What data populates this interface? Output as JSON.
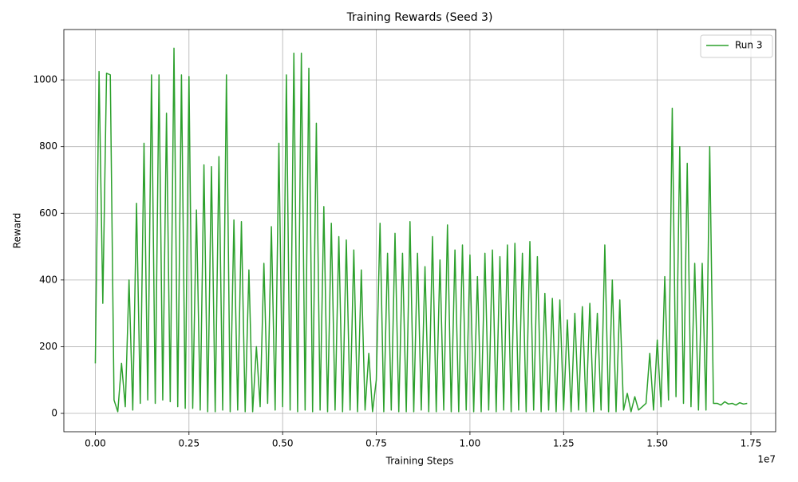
{
  "chart_data": {
    "type": "line",
    "title": "Training Rewards (Seed 3)",
    "x_label": "Training Steps",
    "y_label": "Reward",
    "x_offset_label": "1e7",
    "x": [
      0,
      0.01,
      0.02,
      0.03,
      0.04,
      0.05,
      0.06,
      0.07,
      0.08,
      0.09,
      0.1,
      0.11,
      0.12,
      0.13,
      0.14,
      0.15,
      0.16,
      0.17,
      0.18,
      0.19,
      0.2,
      0.21,
      0.22,
      0.23,
      0.24,
      0.25,
      0.26,
      0.27,
      0.28,
      0.29,
      0.3,
      0.31,
      0.32,
      0.33,
      0.34,
      0.35,
      0.36,
      0.37,
      0.38,
      0.39,
      0.4,
      0.41,
      0.42,
      0.43,
      0.44,
      0.45,
      0.46,
      0.47,
      0.48,
      0.49,
      0.5,
      0.51,
      0.52,
      0.53,
      0.54,
      0.55,
      0.56,
      0.57,
      0.58,
      0.59,
      0.6,
      0.61,
      0.62,
      0.63,
      0.64,
      0.65,
      0.66,
      0.67,
      0.68,
      0.69,
      0.7,
      0.71,
      0.72,
      0.73,
      0.74,
      0.75,
      0.76,
      0.77,
      0.78,
      0.79,
      0.8,
      0.81,
      0.82,
      0.83,
      0.84,
      0.85,
      0.86,
      0.87,
      0.88,
      0.89,
      0.9,
      0.91,
      0.92,
      0.93,
      0.94,
      0.95,
      0.96,
      0.97,
      0.98,
      0.99,
      1,
      1.01,
      1.02,
      1.03,
      1.04,
      1.05,
      1.06,
      1.07,
      1.08,
      1.09,
      1.1,
      1.11,
      1.12,
      1.13,
      1.14,
      1.15,
      1.16,
      1.17,
      1.18,
      1.19,
      1.2,
      1.21,
      1.22,
      1.23,
      1.24,
      1.25,
      1.26,
      1.27,
      1.28,
      1.29,
      1.3,
      1.31,
      1.32,
      1.33,
      1.34,
      1.35,
      1.36,
      1.37,
      1.38,
      1.39,
      1.4,
      1.41,
      1.42,
      1.43,
      1.44,
      1.45,
      1.46,
      1.47,
      1.48,
      1.49,
      1.5,
      1.51,
      1.52,
      1.53,
      1.54,
      1.55,
      1.56,
      1.57,
      1.58,
      1.59,
      1.6,
      1.61,
      1.62,
      1.63,
      1.64,
      1.65,
      1.66,
      1.67,
      1.68,
      1.69,
      1.7,
      1.71,
      1.72,
      1.73,
      1.74
    ],
    "series": [
      {
        "name": "Run 3",
        "color": "#2ca02c",
        "values": [
          150,
          1025,
          330,
          1020,
          1015,
          40,
          5,
          150,
          20,
          400,
          10,
          630,
          30,
          810,
          40,
          1015,
          30,
          1015,
          40,
          900,
          35,
          1095,
          20,
          1015,
          15,
          1010,
          15,
          610,
          10,
          745,
          5,
          740,
          5,
          770,
          10,
          1015,
          5,
          580,
          10,
          575,
          5,
          430,
          5,
          200,
          20,
          450,
          30,
          560,
          10,
          810,
          20,
          1015,
          10,
          1080,
          5,
          1080,
          10,
          1035,
          5,
          870,
          10,
          620,
          5,
          570,
          10,
          530,
          5,
          520,
          10,
          490,
          5,
          430,
          10,
          180,
          5,
          100,
          570,
          5,
          480,
          10,
          540,
          5,
          480,
          5,
          575,
          5,
          480,
          10,
          440,
          5,
          530,
          5,
          460,
          10,
          565,
          5,
          490,
          5,
          505,
          10,
          475,
          5,
          410,
          5,
          480,
          10,
          490,
          5,
          470,
          10,
          505,
          5,
          510,
          10,
          480,
          5,
          515,
          10,
          470,
          5,
          360,
          10,
          345,
          5,
          340,
          10,
          280,
          5,
          300,
          10,
          320,
          5,
          330,
          5,
          300,
          10,
          505,
          5,
          400,
          5,
          340,
          10,
          60,
          5,
          50,
          10,
          20,
          30,
          180,
          10,
          220,
          20,
          410,
          40,
          915,
          50,
          800,
          30,
          750,
          20,
          450,
          10,
          450,
          10,
          800,
          30,
          30,
          25,
          35,
          28,
          30,
          25,
          32,
          28,
          30
        ]
      }
    ],
    "xlim": [
      -0.084,
      1.816
    ],
    "ylim": [
      -55,
      1151
    ],
    "xticks": [
      {
        "value": 0,
        "label": "0.00"
      },
      0.25,
      {
        "value": 0.5,
        "label": "0.50"
      },
      0.75,
      {
        "value": 1,
        "label": "1.00"
      },
      1.25,
      {
        "value": 1.5,
        "label": "1.50"
      },
      1.75
    ],
    "yticks": [
      0,
      200,
      400,
      600,
      800,
      1000
    ],
    "grid": true,
    "legend": "upper right"
  }
}
